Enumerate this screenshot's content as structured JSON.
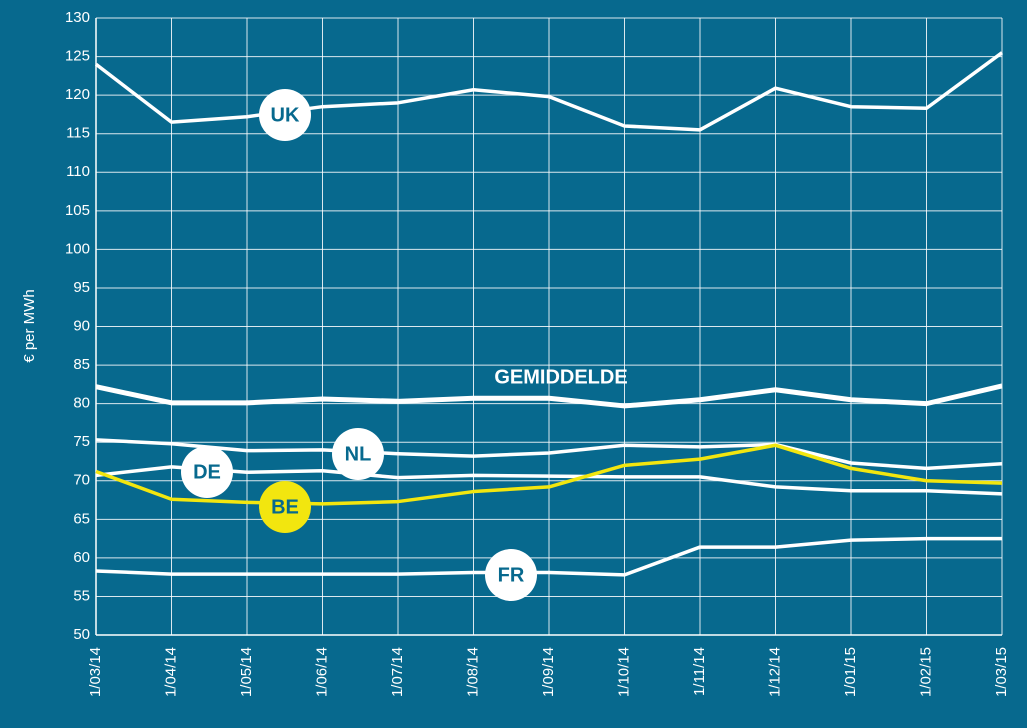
{
  "chart_data": {
    "type": "line",
    "y_label": "€ per MWh",
    "categories": [
      "1/03/14",
      "1/04/14",
      "1/05/14",
      "1/06/14",
      "1/07/14",
      "1/08/14",
      "1/09/14",
      "1/10/14",
      "1/11/14",
      "1/12/14",
      "1/01/15",
      "1/02/15",
      "1/03/15"
    ],
    "series": [
      {
        "name": "UK",
        "color": "#ffffff",
        "values": [
          124,
          116.5,
          117.2,
          118.5,
          119,
          120.7,
          119.8,
          116,
          115.5,
          120.9,
          118.5,
          118.3,
          125.5
        ]
      },
      {
        "name": "GEMIDDELDE",
        "color": "#ffffff",
        "values": [
          82.2,
          80.1,
          80.1,
          80.6,
          80.3,
          80.7,
          80.7,
          79.7,
          80.5,
          81.8,
          80.5,
          80,
          82.3
        ]
      },
      {
        "name": "NL",
        "color": "#ffffff",
        "values": [
          75.3,
          74.8,
          73.9,
          74,
          73.5,
          73.2,
          73.6,
          74.6,
          74.4,
          74.7,
          72.3,
          71.6,
          72.2
        ]
      },
      {
        "name": "DE",
        "color": "#ffffff",
        "values": [
          70.7,
          71.8,
          71.1,
          71.3,
          70.4,
          70.7,
          70.6,
          70.5,
          70.5,
          69.2,
          68.7,
          68.7,
          68.3
        ]
      },
      {
        "name": "BE",
        "color": "#f2e60f",
        "values": [
          71.2,
          67.6,
          67.2,
          67,
          67.3,
          68.6,
          69.2,
          72,
          72.8,
          74.6,
          71.6,
          70,
          69.7
        ]
      },
      {
        "name": "FR",
        "color": "#ffffff",
        "values": [
          58.3,
          57.9,
          57.9,
          57.9,
          57.9,
          58.1,
          58.1,
          57.8,
          61.4,
          61.4,
          62.3,
          62.5,
          62.5
        ]
      }
    ],
    "ylim": [
      50,
      130
    ],
    "yticks": [
      50,
      55,
      60,
      65,
      70,
      75,
      80,
      85,
      90,
      95,
      100,
      105,
      110,
      115,
      120,
      125,
      130
    ],
    "grid": true
  }
}
